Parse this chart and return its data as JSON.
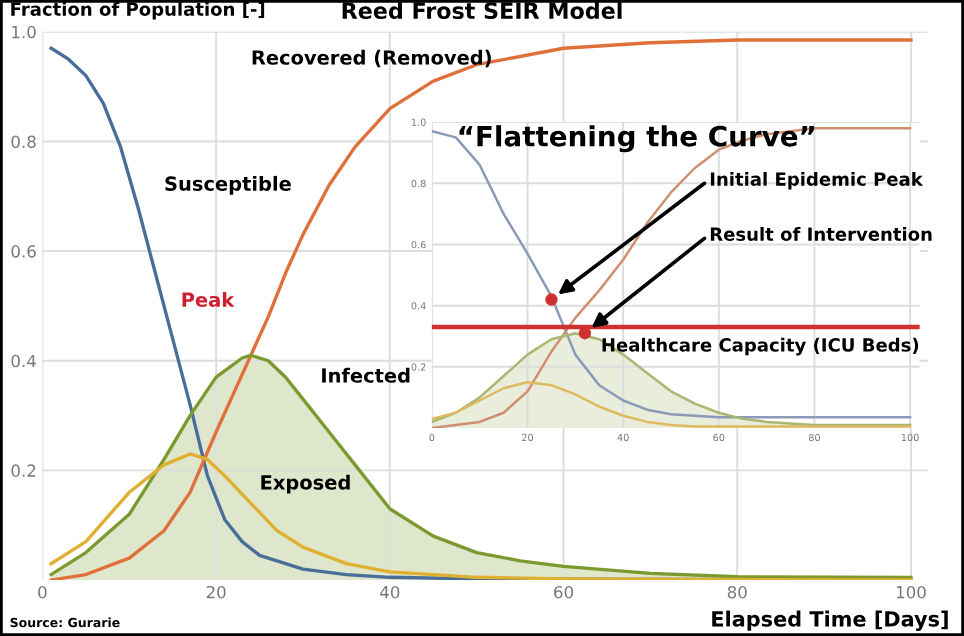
{
  "chart_data": [
    {
      "type": "line",
      "title": "Reed Frost SEIR Model",
      "xlabel": "Elapsed Time [Days]",
      "ylabel": "Fraction of Population [-]",
      "xlim": [
        0,
        102
      ],
      "ylim": [
        0,
        1.0
      ],
      "xticks": [
        0,
        20,
        40,
        60,
        80,
        100
      ],
      "yticks": [
        0.2,
        0.4,
        0.6,
        0.8,
        {
          "value": 1.0,
          "label": "1.0"
        }
      ],
      "grid": true,
      "series": [
        {
          "name": "Susceptible",
          "color": "#4a6e9a",
          "x": [
            1,
            3,
            5,
            7,
            9,
            11,
            13,
            15,
            17,
            19,
            21,
            23,
            25,
            30,
            35,
            40,
            50,
            100
          ],
          "values": [
            0.97,
            0.95,
            0.92,
            0.87,
            0.79,
            0.68,
            0.56,
            0.44,
            0.32,
            0.19,
            0.11,
            0.07,
            0.045,
            0.02,
            0.01,
            0.005,
            0.002,
            0.0
          ]
        },
        {
          "name": "Recovered (Removed)",
          "color": "#e0703a",
          "x": [
            1,
            5,
            10,
            14,
            17,
            20,
            22,
            24,
            26,
            28,
            30,
            33,
            36,
            40,
            45,
            50,
            60,
            70,
            80,
            100
          ],
          "values": [
            0.0,
            0.01,
            0.04,
            0.09,
            0.16,
            0.27,
            0.34,
            0.41,
            0.48,
            0.56,
            0.63,
            0.72,
            0.79,
            0.86,
            0.91,
            0.94,
            0.97,
            0.98,
            0.985,
            0.985
          ]
        },
        {
          "name": "Infected",
          "type": "area",
          "color": "#7a9a30",
          "x": [
            1,
            5,
            10,
            14,
            17,
            20,
            23,
            24,
            26,
            28,
            30,
            33,
            36,
            40,
            45,
            50,
            55,
            60,
            70,
            80,
            100
          ],
          "values": [
            0.01,
            0.05,
            0.12,
            0.22,
            0.3,
            0.37,
            0.405,
            0.41,
            0.4,
            0.37,
            0.33,
            0.27,
            0.21,
            0.13,
            0.08,
            0.05,
            0.035,
            0.025,
            0.012,
            0.006,
            0.005
          ]
        },
        {
          "name": "Exposed",
          "color": "#e0b030",
          "x": [
            1,
            5,
            10,
            14,
            17,
            19,
            21,
            24,
            27,
            30,
            35,
            40,
            50,
            60,
            100
          ],
          "values": [
            0.03,
            0.07,
            0.16,
            0.21,
            0.23,
            0.22,
            0.19,
            0.14,
            0.09,
            0.06,
            0.03,
            0.015,
            0.005,
            0.002,
            0.0
          ]
        }
      ],
      "annotations": [
        {
          "text": "Peak",
          "x": 24,
          "y": 0.41
        },
        "Source: Gurarie"
      ]
    },
    {
      "type": "line",
      "title": "“Flattening the Curve”",
      "x": [
        0,
        5,
        10,
        15,
        20,
        25,
        30,
        35,
        40,
        45,
        50,
        55,
        60,
        65,
        70,
        75,
        80,
        85,
        90,
        95,
        100
      ],
      "xlim": [
        0,
        102
      ],
      "ylim": [
        0,
        1.0
      ],
      "xticks": [
        0,
        20,
        40,
        60,
        80,
        100
      ],
      "yticks": [
        0.2,
        0.4,
        0.6,
        0.8,
        {
          "value": 1.0,
          "label": "1.0"
        }
      ],
      "grid": true,
      "series": [
        {
          "color": "#8a9ab8",
          "values": [
            0.97,
            0.95,
            0.86,
            0.7,
            0.57,
            0.43,
            0.24,
            0.14,
            0.09,
            0.06,
            0.045,
            0.04,
            0.035,
            0.035,
            0.035,
            0.035,
            0.035,
            0.035,
            0.035,
            0.035,
            0.035
          ]
        },
        {
          "color": "#d09070",
          "values": [
            0.0,
            0.01,
            0.02,
            0.05,
            0.12,
            0.25,
            0.36,
            0.45,
            0.55,
            0.67,
            0.77,
            0.85,
            0.91,
            0.94,
            0.96,
            0.97,
            0.98,
            0.98,
            0.98,
            0.98,
            0.98
          ]
        },
        {
          "type": "area",
          "color": "#a8b870",
          "values": [
            0.02,
            0.05,
            0.1,
            0.17,
            0.24,
            0.29,
            0.31,
            0.29,
            0.24,
            0.18,
            0.12,
            0.08,
            0.05,
            0.03,
            0.02,
            0.015,
            0.01,
            0.01,
            0.01,
            0.01,
            0.01
          ]
        },
        {
          "color": "#e0b860",
          "values": [
            0.03,
            0.05,
            0.09,
            0.13,
            0.15,
            0.14,
            0.11,
            0.07,
            0.04,
            0.02,
            0.01,
            0.005,
            0.005,
            0.005,
            0.005,
            0.005,
            0.005,
            0.005,
            0.005,
            0.005,
            0.005
          ]
        },
        {
          "type": "scatter",
          "color": "#d03030",
          "x": [
            25,
            32
          ],
          "values": [
            0.42,
            0.31
          ]
        }
      ],
      "ref_lines": [
        {
          "axis": "y",
          "value": 0.33,
          "label": "Healthcare Capacity (ICU Beds)",
          "color": "#d03030"
        }
      ],
      "annotations": [
        {
          "text": "Initial Epidemic Peak",
          "x": 25,
          "y": 0.42
        },
        {
          "text": "Result of Intervention",
          "x": 32,
          "y": 0.31
        }
      ]
    }
  ]
}
